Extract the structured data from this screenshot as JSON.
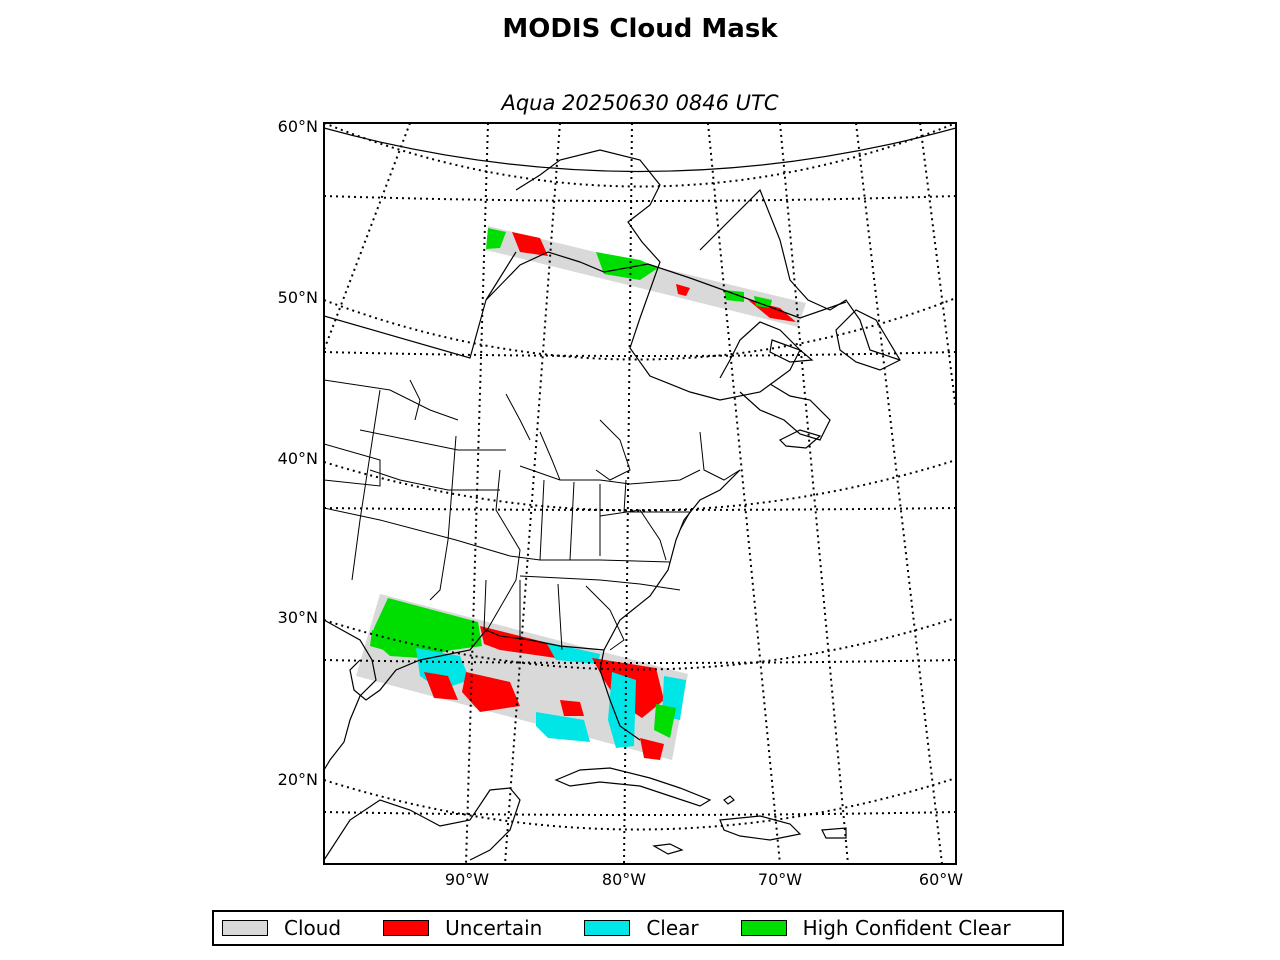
{
  "title": "MODIS Cloud Mask",
  "subtitle": "Aqua 20250630 0846 UTC",
  "map": {
    "projection": "lambert-conic",
    "lat_labels": [
      "60°N",
      "50°N",
      "40°N",
      "30°N",
      "20°N"
    ],
    "lon_labels": [
      "90°W",
      "80°W",
      "70°W",
      "60°W"
    ],
    "gridlines": "dotted",
    "coastlines": true,
    "state_borders": true
  },
  "legend": {
    "items": [
      {
        "label": "Cloud",
        "color": "#d9d9d9"
      },
      {
        "label": "Uncertain",
        "color": "#ff0000"
      },
      {
        "label": "Clear",
        "color": "#00e5e5"
      },
      {
        "label": "High Confident Clear",
        "color": "#00dd00"
      }
    ],
    "placement": "bottom"
  },
  "swaths": [
    {
      "name": "northern-swath",
      "dominant_class": "Cloud"
    },
    {
      "name": "southern-swath",
      "dominant_class": "Cloud"
    }
  ]
}
